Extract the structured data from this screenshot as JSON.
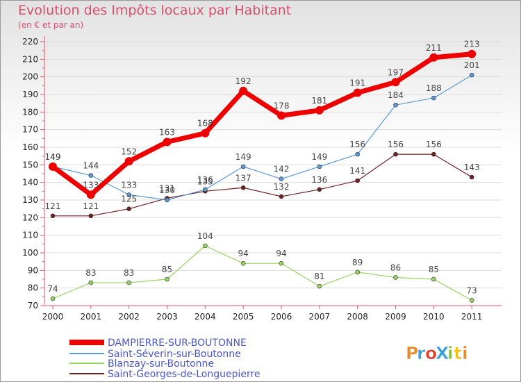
{
  "chart_data": {
    "type": "line",
    "title": "Evolution des Impôts locaux par Habitant",
    "subtitle": "(en € et par an)",
    "xlabel": "",
    "ylabel": "",
    "ylim": [
      70,
      220
    ],
    "yticks": [
      70,
      80,
      90,
      100,
      110,
      120,
      130,
      140,
      150,
      160,
      170,
      180,
      190,
      200,
      210,
      220
    ],
    "categories": [
      "2000",
      "2001",
      "2002",
      "2003",
      "2004",
      "2005",
      "2006",
      "2007",
      "2008",
      "2009",
      "2010",
      "2011"
    ],
    "series": [
      {
        "name": "DAMPIERRE-SUR-BOUTONNE",
        "color": "#ee0000",
        "values": [
          149,
          133,
          152,
          163,
          168,
          192,
          178,
          181,
          191,
          197,
          211,
          213
        ]
      },
      {
        "name": "Saint-Séverin-sur-Boutonne",
        "color": "#5b9ad4",
        "values": [
          149,
          144,
          133,
          130,
          136,
          149,
          142,
          149,
          156,
          184,
          188,
          201
        ]
      },
      {
        "name": "Blanzay-sur-Boutonne",
        "color": "#96d35f",
        "values": [
          74,
          83,
          83,
          85,
          104,
          94,
          94,
          81,
          89,
          86,
          85,
          73
        ]
      },
      {
        "name": "Saint-Georges-de-Longuepierre",
        "color": "#6e1f1f",
        "values": [
          121,
          121,
          125,
          131,
          135,
          137,
          132,
          136,
          141,
          156,
          156,
          143
        ]
      }
    ]
  },
  "branding": {
    "logo_text": "ProXiti",
    "logo_colors": [
      "#e8892b",
      "#3aa0d8",
      "#e0442e",
      "#3aa0d8",
      "#84c23c",
      "#f1c21c",
      "#e8892b"
    ]
  }
}
